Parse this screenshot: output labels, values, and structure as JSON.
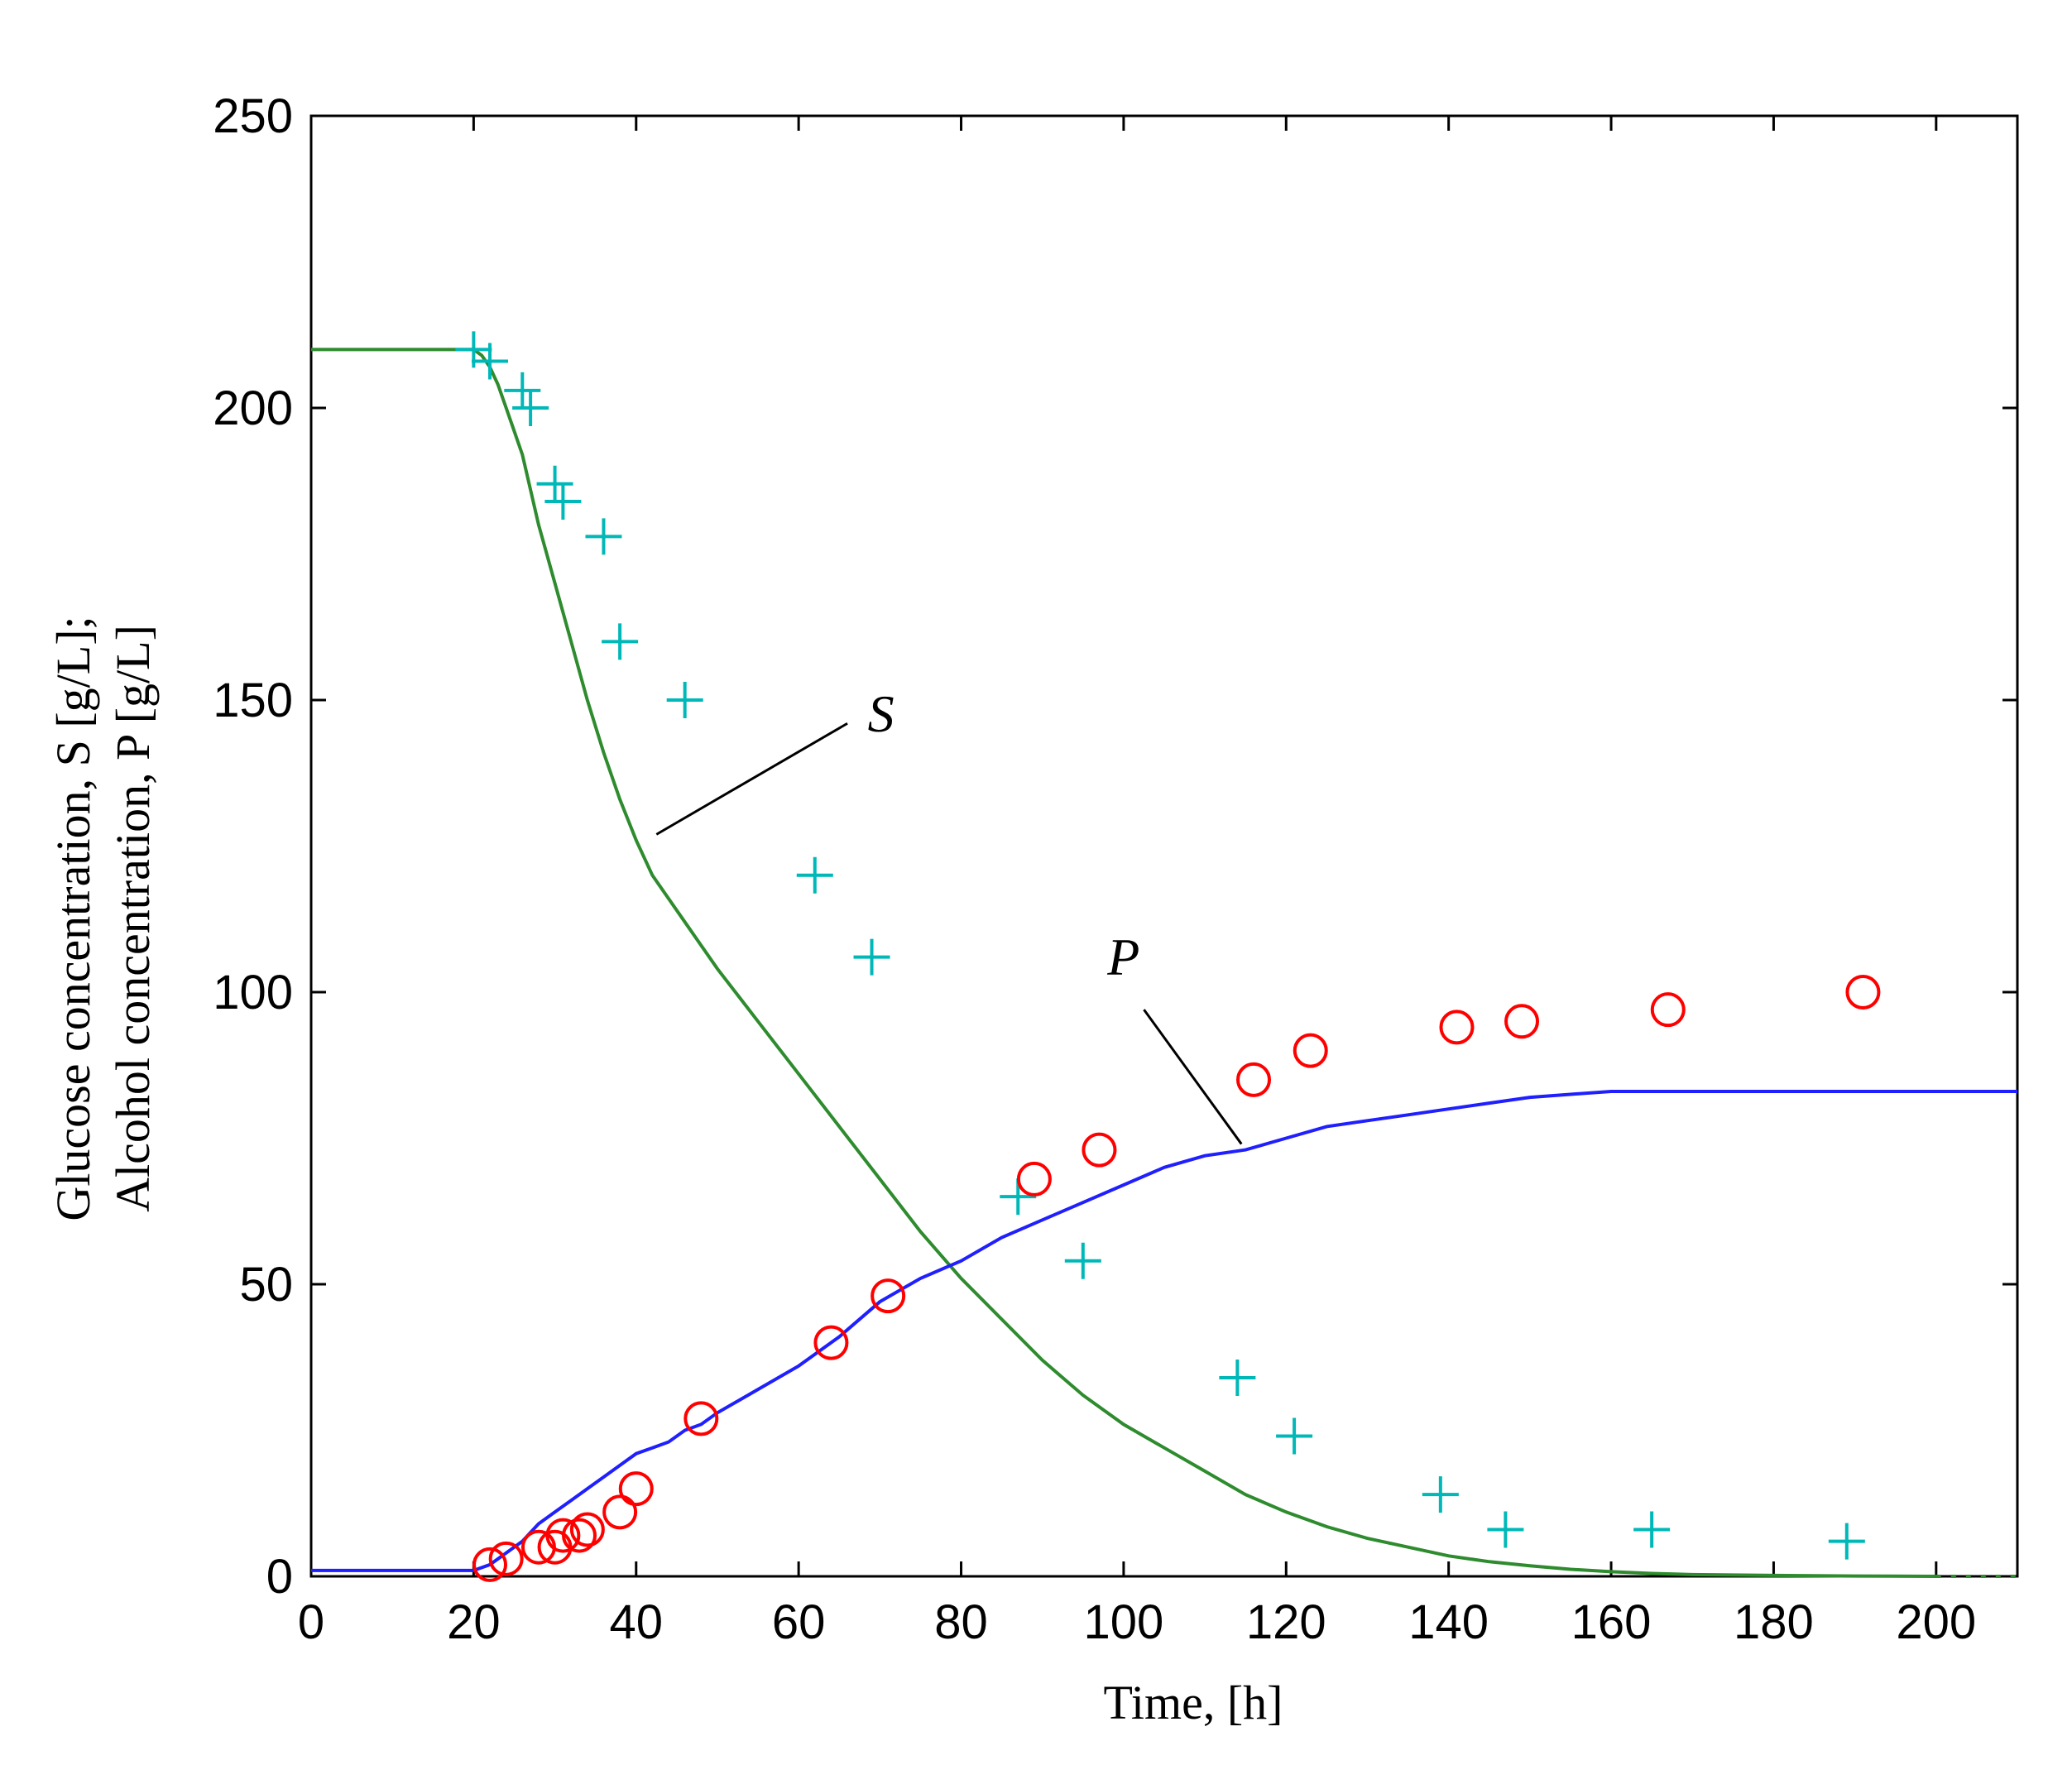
{
  "chart_data": {
    "type": "line",
    "xlabel": "Time, [h]",
    "ylabel_line1": "Glucose concentration, S [g/L];",
    "ylabel_line2": "Alcohol concentration, P [g/L]",
    "xlim": [
      0,
      210
    ],
    "ylim": [
      0,
      250
    ],
    "xticks": [
      0,
      20,
      40,
      60,
      80,
      100,
      120,
      140,
      160,
      180,
      200
    ],
    "yticks": [
      0,
      50,
      100,
      150,
      200,
      250
    ],
    "grid": false,
    "annotations": [
      {
        "label": "S",
        "series": "S"
      },
      {
        "label": "P",
        "series": "P"
      }
    ],
    "series": [
      {
        "key": "S",
        "kind": "line",
        "color": "#2e8b2e",
        "x": [
          0,
          20,
          21,
          22,
          23,
          24,
          25,
          26,
          27,
          28,
          30,
          32,
          34,
          36,
          38,
          40,
          42,
          44,
          46,
          48,
          50,
          55,
          60,
          65,
          70,
          75,
          80,
          85,
          90,
          95,
          100,
          105,
          110,
          115,
          120,
          125,
          130,
          135,
          140,
          145,
          150,
          155,
          160,
          165,
          170,
          180,
          190,
          200
        ],
        "y": [
          210,
          210,
          209,
          207,
          204,
          200,
          196,
          192,
          186,
          180,
          170,
          160,
          150,
          141,
          133,
          126,
          120,
          116,
          112,
          108,
          104,
          95,
          86,
          77,
          68,
          59,
          51,
          44,
          37,
          31,
          26,
          22,
          18,
          14,
          11,
          8.5,
          6.5,
          5,
          3.5,
          2.5,
          1.8,
          1.2,
          0.8,
          0.5,
          0.3,
          0.15,
          0.05,
          0
        ]
      },
      {
        "key": "S_dotted",
        "kind": "dotted",
        "color": "#2e8b2e",
        "x": [
          200,
          202,
          204,
          206,
          208,
          210
        ],
        "y": [
          0,
          0,
          0,
          0,
          0,
          0
        ]
      },
      {
        "key": "P",
        "kind": "line",
        "color": "#1f1fff",
        "x": [
          0,
          20,
          22,
          24,
          26,
          28,
          30,
          32,
          34,
          36,
          38,
          40,
          42,
          44,
          46,
          48,
          50,
          55,
          60,
          65,
          70,
          75,
          80,
          85,
          90,
          95,
          100,
          105,
          110,
          115,
          120,
          125,
          130,
          135,
          140,
          145,
          150,
          155,
          160,
          165,
          170,
          180,
          190,
          200,
          210
        ],
        "y": [
          1,
          1,
          2,
          4,
          6,
          9,
          11,
          13,
          15,
          17,
          19,
          21,
          22,
          23,
          25,
          26,
          28,
          32,
          36,
          41,
          47,
          51,
          54,
          58,
          61,
          64,
          67,
          70,
          72,
          73,
          75,
          77,
          78,
          79,
          80,
          81,
          82,
          82.5,
          83,
          83,
          83,
          83,
          83,
          83,
          83
        ]
      },
      {
        "key": "S_data",
        "kind": "marker-plus",
        "color": "#00b8b8",
        "x": [
          20,
          22,
          26,
          27,
          30,
          31,
          36,
          38,
          46,
          62,
          69,
          87,
          95,
          114,
          121,
          139,
          147,
          165,
          189
        ],
        "y": [
          210,
          208,
          203,
          200,
          187,
          184,
          178,
          160,
          150,
          120,
          106,
          65,
          54,
          34,
          24,
          14,
          8,
          8,
          6
        ]
      },
      {
        "key": "P_data",
        "kind": "marker-circle",
        "color": "#ff0000",
        "x": [
          22,
          24,
          28,
          30,
          31,
          33,
          34,
          38,
          40,
          48,
          64,
          71,
          89,
          97,
          116,
          123,
          141,
          149,
          167,
          191
        ],
        "y": [
          2,
          3,
          5,
          5,
          7,
          7,
          8,
          11,
          15,
          27,
          40,
          48,
          68,
          73,
          85,
          90,
          94,
          95,
          97,
          100
        ]
      }
    ]
  }
}
